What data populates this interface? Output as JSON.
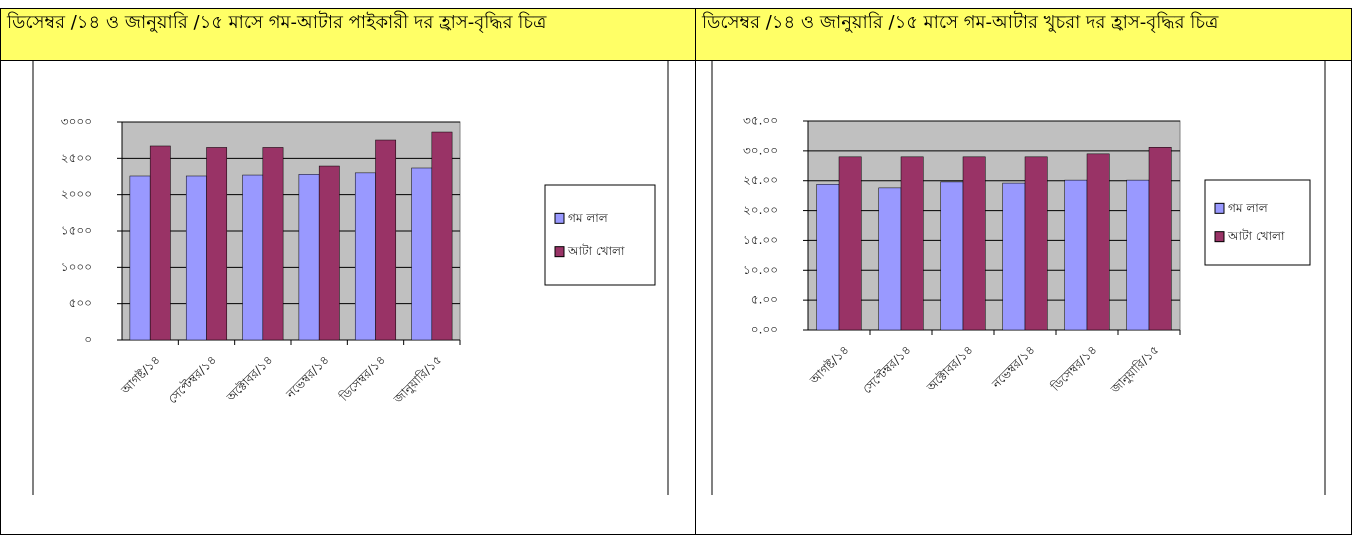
{
  "chart_data": [
    {
      "type": "bar",
      "title": "ডিসেম্বর /১৪ ও জানুয়ারি /১৫ মাসে গম-আটার পাইকারী দর হ্রাস-বৃদ্ধির চিত্র",
      "categories": [
        "আগষ্ট/১৪",
        "সেপ্টেম্বর/১৪",
        "অক্টোবর/১৪",
        "নভেম্বর/১৪",
        "ডিসেম্বর/১৪",
        "জানুয়ারি/১৫"
      ],
      "series": [
        {
          "name": "গম লাল",
          "color": "#9999ff",
          "values": [
            2257,
            2257,
            2270,
            2280,
            2300,
            2367
          ]
        },
        {
          "name": "আটা খোলা",
          "color": "#993366",
          "values": [
            2670,
            2650,
            2650,
            2394,
            2752,
            2862
          ]
        }
      ],
      "ylim": [
        0,
        3000
      ],
      "yticks": [
        {
          "value": 0,
          "label": "০"
        },
        {
          "value": 500,
          "label": "৫০০"
        },
        {
          "value": 1000,
          "label": "১০০০"
        },
        {
          "value": 1500,
          "label": "১৫০০"
        },
        {
          "value": 2000,
          "label": "২০০০"
        },
        {
          "value": 2500,
          "label": "২৫০০"
        },
        {
          "value": 3000,
          "label": "৩০০০"
        }
      ],
      "grid": true,
      "legend": "right"
    },
    {
      "type": "bar",
      "title": "ডিসেম্বর /১৪ ও জানুয়ারি /১৫ মাসে গম-আটার খুচরা দর হ্রাস-বৃদ্ধির চিত্র",
      "categories": [
        "আগষ্ট/১৪",
        "সেপ্টেম্বর/১৪",
        "অক্টোবর/১৪",
        "নভেম্বর/১৪",
        "ডিসেম্বর/১৪",
        "জানুয়ারি/১৫"
      ],
      "series": [
        {
          "name": "গম লাল",
          "color": "#9999ff",
          "values": [
            24.4,
            23.8,
            24.8,
            24.6,
            25.1,
            25.1
          ]
        },
        {
          "name": "আটা খোলা",
          "color": "#993366",
          "values": [
            29.0,
            29.0,
            29.0,
            29.0,
            29.5,
            30.6
          ]
        }
      ],
      "ylim": [
        0,
        35
      ],
      "yticks": [
        {
          "value": 0,
          "label": "০.০০"
        },
        {
          "value": 5,
          "label": "৫.০০"
        },
        {
          "value": 10,
          "label": "১০.০০"
        },
        {
          "value": 15,
          "label": "১৫.০০"
        },
        {
          "value": 20,
          "label": "২০.০০"
        },
        {
          "value": 25,
          "label": "২৫.০০"
        },
        {
          "value": 30,
          "label": "৩০.০০"
        },
        {
          "value": 35,
          "label": "৩৫.০০"
        }
      ],
      "grid": true,
      "legend": "right"
    }
  ]
}
